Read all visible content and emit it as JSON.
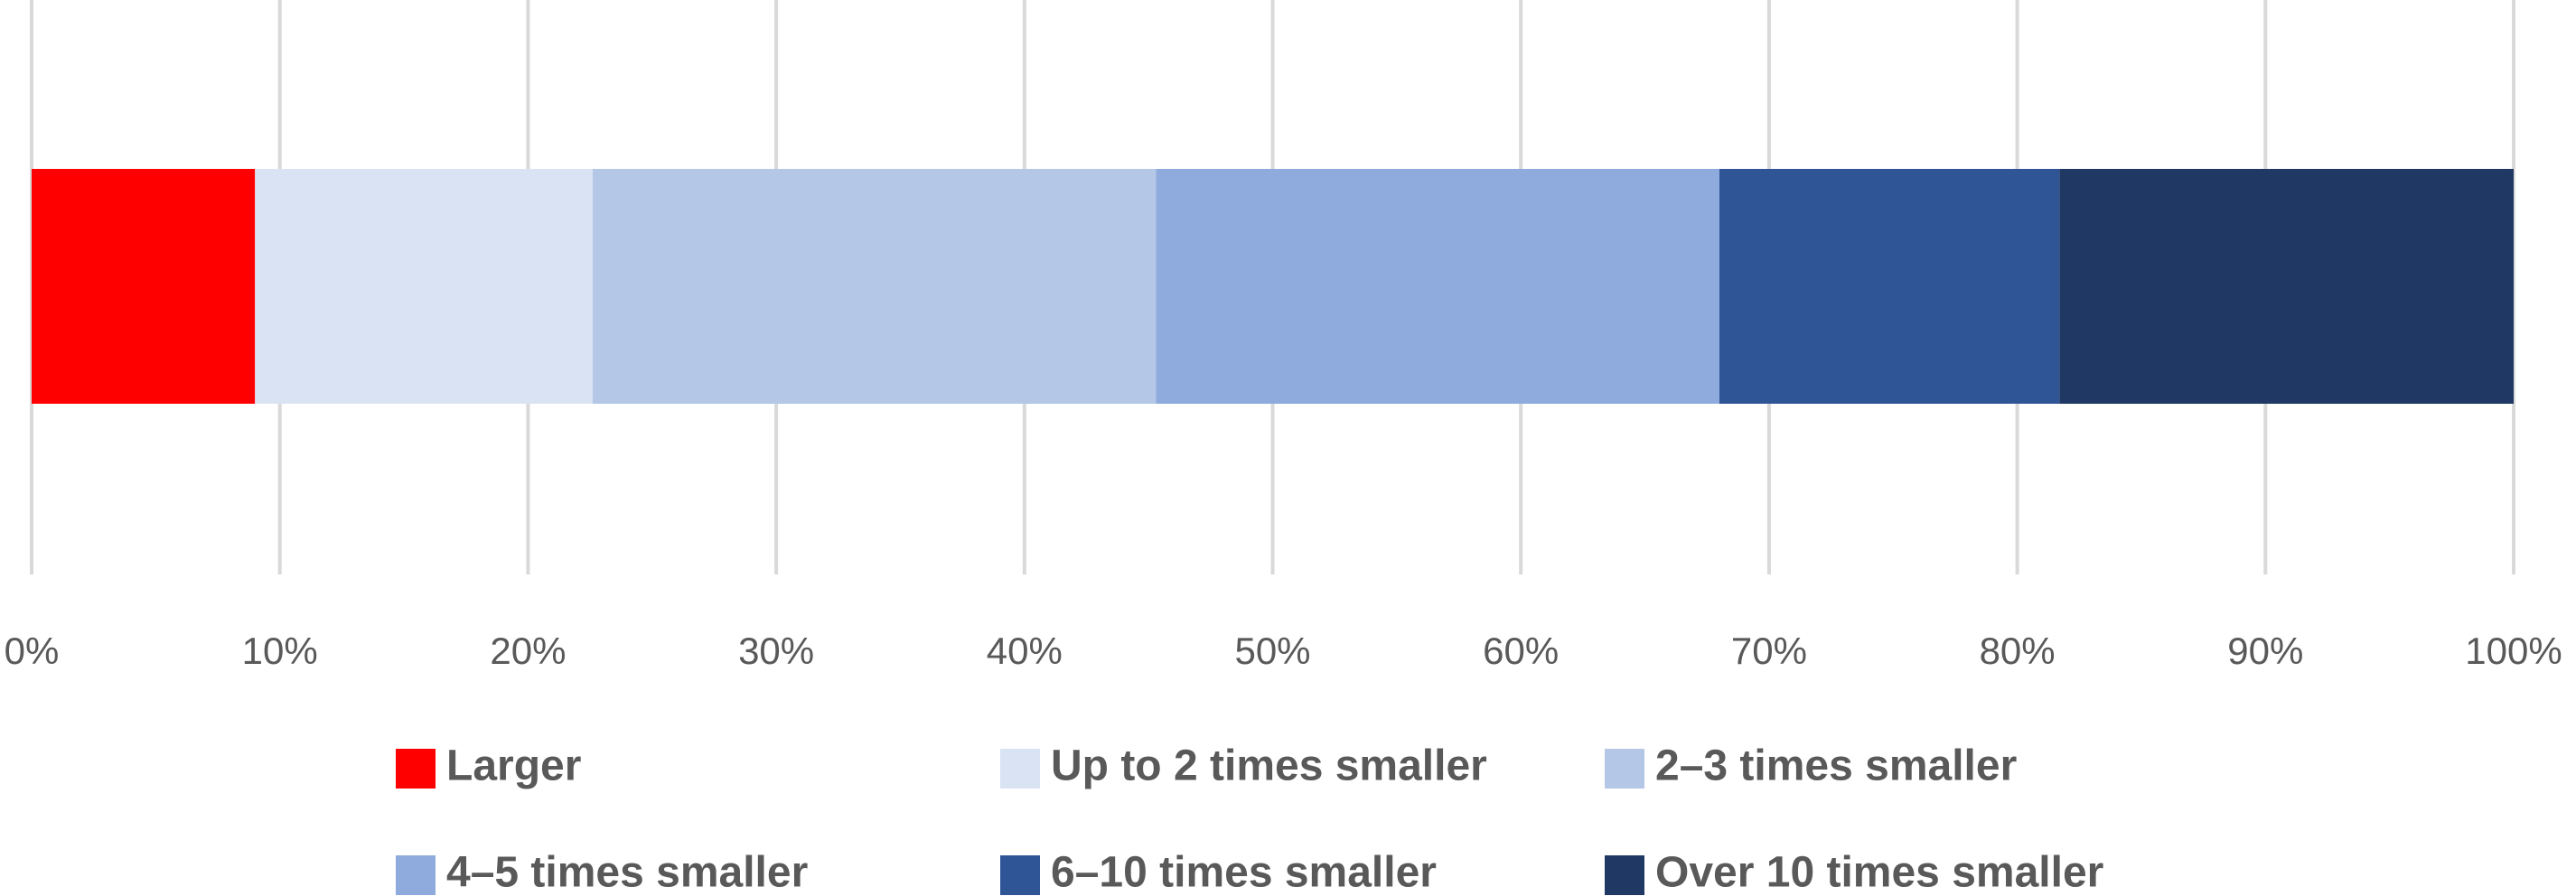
{
  "chart_data": {
    "type": "stacked_bar_horizontal",
    "categories": [
      null
    ],
    "series": [
      {
        "name": "Larger",
        "color": "#ff0000",
        "values": [
          9.0
        ]
      },
      {
        "name": "Up to 2 times smaller",
        "color": "#dae3f3",
        "values": [
          13.6
        ]
      },
      {
        "name": "2–3 times smaller",
        "color": "#b4c7e7",
        "values": [
          22.7
        ]
      },
      {
        "name": "4–5 times smaller",
        "color": "#8faadc",
        "values": [
          22.7
        ]
      },
      {
        "name": "6–10 times smaller",
        "color": "#2f5597",
        "values": [
          13.7
        ]
      },
      {
        "name": "Over 10 times smaller",
        "color": "#203864",
        "values": [
          18.3
        ]
      }
    ],
    "xlim": [
      0,
      100
    ],
    "xticks": [
      {
        "value": 0,
        "label": "0%"
      },
      {
        "value": 10,
        "label": "10%"
      },
      {
        "value": 20,
        "label": "20%"
      },
      {
        "value": 30,
        "label": "30%"
      },
      {
        "value": 40,
        "label": "40%"
      },
      {
        "value": 50,
        "label": "50%"
      },
      {
        "value": 60,
        "label": "60%"
      },
      {
        "value": 70,
        "label": "70%"
      },
      {
        "value": 80,
        "label": "80%"
      },
      {
        "value": 90,
        "label": "90%"
      },
      {
        "value": 100,
        "label": "100%"
      }
    ],
    "grid": true,
    "legend": "bottom"
  }
}
